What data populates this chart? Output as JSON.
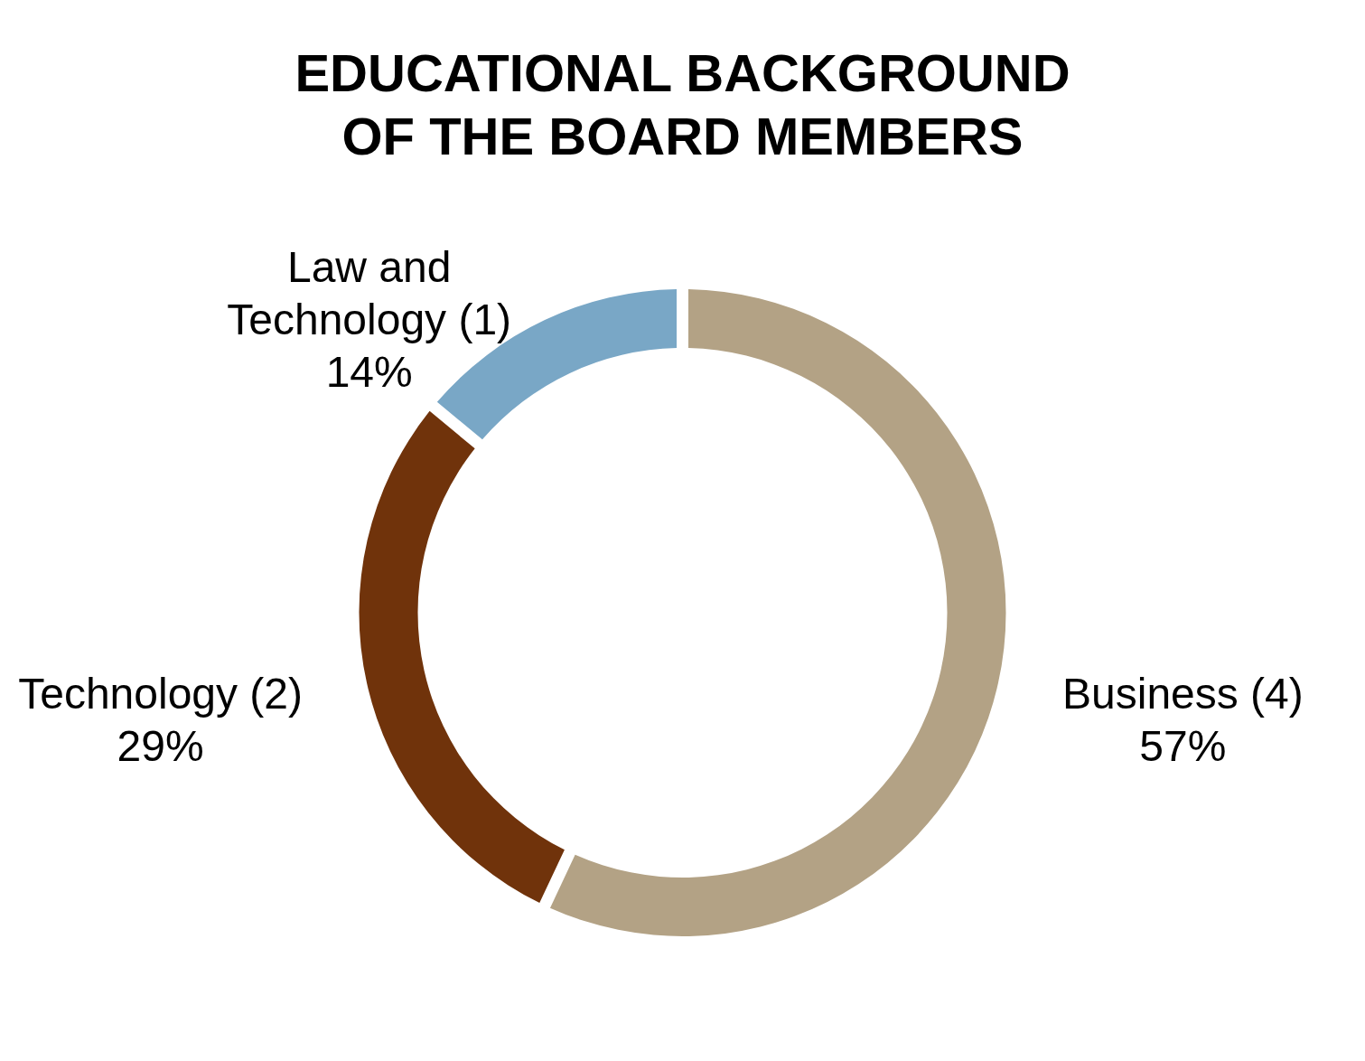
{
  "chart_data": {
    "type": "donut",
    "title": "EDUCATIONAL BACKGROUND OF THE BOARD MEMBERS",
    "categories": [
      "Business (4)",
      "Technology (2)",
      "Law and Technology (1)"
    ],
    "values": [
      57,
      29,
      14
    ],
    "value_labels": [
      "57%",
      "29%",
      "14%"
    ],
    "colors": [
      "#b3a285",
      "#70330b",
      "#79a7c6"
    ]
  }
}
